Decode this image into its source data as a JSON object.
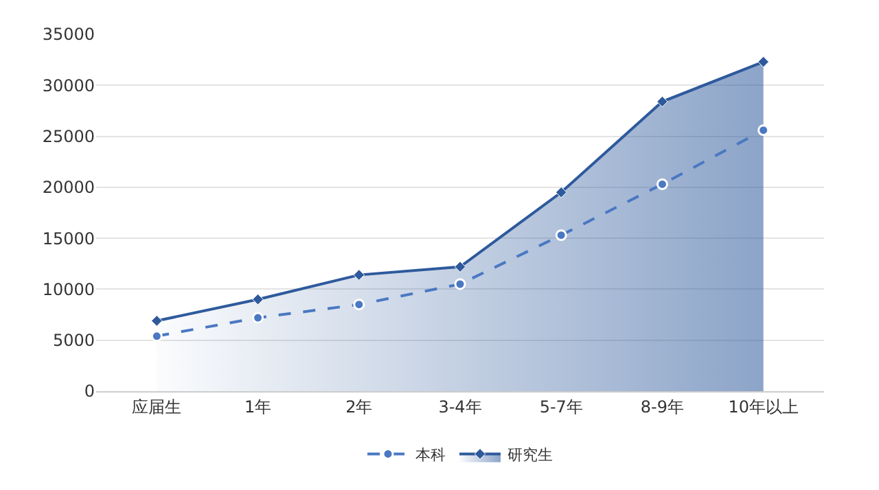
{
  "chart_data": {
    "type": "line",
    "categories": [
      "应届生",
      "1年",
      "2年",
      "3-4年",
      "5-7年",
      "8-9年",
      "10年以上"
    ],
    "series": [
      {
        "name": "本科",
        "color": "#4a78c2",
        "values": [
          5400,
          7200,
          8500,
          10500,
          15300,
          20300,
          25600
        ],
        "marker": "circle",
        "line_style": "dashed"
      },
      {
        "name": "研究生",
        "type": "area",
        "color": "#2e5a9c",
        "values": [
          6900,
          9000,
          11400,
          12200,
          19500,
          28400,
          32300
        ],
        "marker": "diamond",
        "line_style": "solid"
      }
    ],
    "ylim": [
      0,
      35000
    ],
    "yticks": [
      0,
      5000,
      10000,
      15000,
      20000,
      25000,
      30000,
      35000
    ],
    "grid": "y",
    "legend": "bottom"
  }
}
